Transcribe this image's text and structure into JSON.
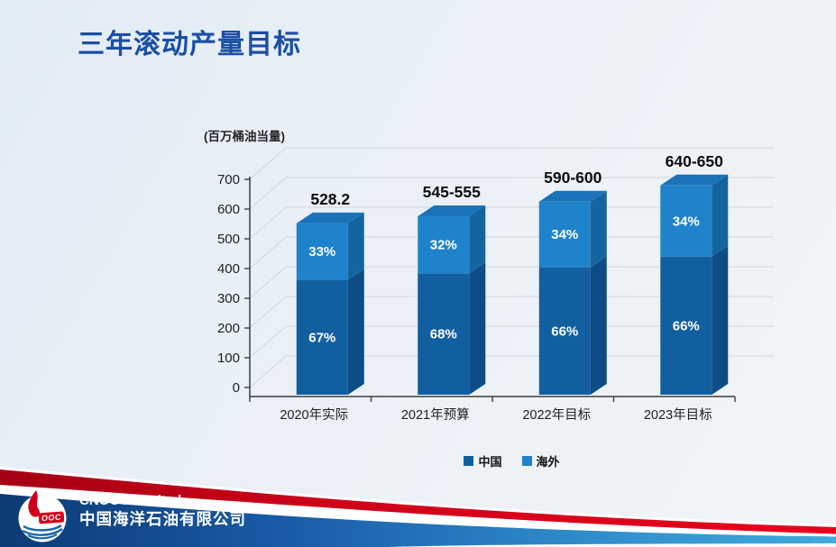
{
  "slide": {
    "title": "三年滚动产量目标"
  },
  "chart_data": {
    "type": "bar",
    "variant": "3d-stacked-percent-column",
    "unit_label": "(百万桶油当量)",
    "categories": [
      "2020年实际",
      "2021年预算",
      "2022年目标",
      "2023年目标"
    ],
    "totals_label": [
      "528.2",
      "545-555",
      "590-600",
      "640-650"
    ],
    "totals_value": [
      528.2,
      550,
      595,
      645
    ],
    "series": [
      {
        "name": "中国",
        "pct": [
          67,
          68,
          66,
          66
        ],
        "color": "#125fa0",
        "side_color": "#0d4c85"
      },
      {
        "name": "海外",
        "pct": [
          33,
          32,
          34,
          34
        ],
        "color": "#1f83cc",
        "side_color": "#14659f",
        "top_color": "#1a72b8"
      }
    ],
    "y_ticks": [
      0,
      100,
      200,
      300,
      400,
      500,
      600,
      700
    ],
    "ylim": [
      0,
      700
    ],
    "grid": true,
    "legend_position": "bottom",
    "grid_color": "#d3d7db",
    "axis_color": "#3c3c3c",
    "bar_label_color": "#ffffff",
    "total_label_color": "#0d0d0d"
  },
  "footer": {
    "company_en": "CNOOC Limited",
    "company_zh": "中国海洋石油有限公司",
    "logo_banner_text": "OOC",
    "brand_red": "#cf0019",
    "brand_blue": "#1b5ca8"
  }
}
